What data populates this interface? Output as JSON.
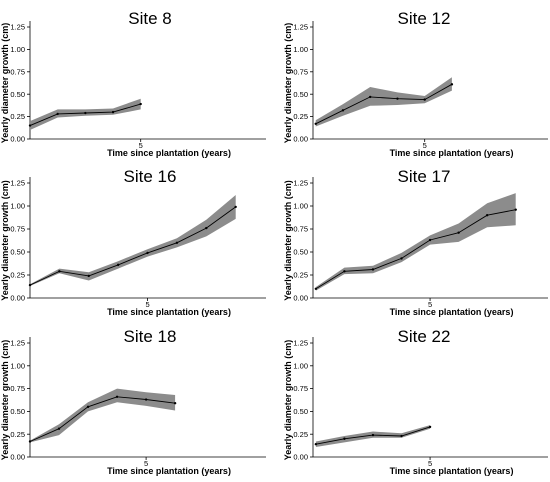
{
  "chart_data": [
    {
      "type": "line",
      "title": "Site 8",
      "xlabel": "Time since plantation (years)",
      "ylabel": "Yearly diameter growth (cm)",
      "x_ticks": [
        5
      ],
      "y_ticks": [
        "0.00",
        "0.25",
        "0.50",
        "0.75",
        "1.00",
        "1.25"
      ],
      "xlim": [
        1,
        9.6
      ],
      "ylim": [
        0,
        1.25
      ],
      "series": [
        {
          "x": [
            1,
            2,
            3,
            4,
            5
          ],
          "values": [
            0.15,
            0.28,
            0.29,
            0.3,
            0.39
          ],
          "lower": [
            0.1,
            0.24,
            0.26,
            0.27,
            0.33
          ],
          "upper": [
            0.2,
            0.33,
            0.33,
            0.34,
            0.45
          ]
        }
      ]
    },
    {
      "type": "line",
      "title": "Site 12",
      "xlabel": "Time since plantation (years)",
      "ylabel": "Yearly diameter growth (cm)",
      "x_ticks": [
        5
      ],
      "y_ticks": [
        "0.00",
        "0.25",
        "0.50",
        "0.75",
        "1.00",
        "1.25"
      ],
      "xlim": [
        0.9,
        9.6
      ],
      "ylim": [
        0,
        1.25
      ],
      "series": [
        {
          "x": [
            1,
            2,
            3,
            4,
            5,
            6
          ],
          "values": [
            0.17,
            0.32,
            0.47,
            0.45,
            0.44,
            0.61
          ],
          "lower": [
            0.14,
            0.26,
            0.37,
            0.38,
            0.4,
            0.54
          ],
          "upper": [
            0.21,
            0.39,
            0.58,
            0.52,
            0.48,
            0.69
          ]
        }
      ]
    },
    {
      "type": "line",
      "title": "Site 16",
      "xlabel": "Time since plantation (years)",
      "ylabel": "Yearly diameter growth (cm)",
      "x_ticks": [
        5
      ],
      "y_ticks": [
        "0.00",
        "0.25",
        "0.50",
        "0.75",
        "1.00",
        "1.25"
      ],
      "xlim": [
        1,
        9.1
      ],
      "ylim": [
        0,
        1.25
      ],
      "series": [
        {
          "x": [
            1,
            2,
            3,
            4,
            5,
            6,
            7,
            8
          ],
          "values": [
            0.14,
            0.29,
            0.24,
            0.36,
            0.49,
            0.6,
            0.76,
            0.99
          ],
          "lower": [
            0.13,
            0.27,
            0.19,
            0.32,
            0.45,
            0.55,
            0.67,
            0.86
          ],
          "upper": [
            0.15,
            0.32,
            0.28,
            0.4,
            0.53,
            0.65,
            0.85,
            1.12
          ]
        }
      ]
    },
    {
      "type": "line",
      "title": "Site 17",
      "xlabel": "Time since plantation (years)",
      "ylabel": "Yearly diameter growth (cm)",
      "x_ticks": [
        5
      ],
      "y_ticks": [
        "0.00",
        "0.25",
        "0.50",
        "0.75",
        "1.00",
        "1.25"
      ],
      "xlim": [
        0.9,
        9.2
      ],
      "ylim": [
        0,
        1.25
      ],
      "series": [
        {
          "x": [
            1,
            2,
            3,
            4,
            5,
            6,
            7,
            8
          ],
          "values": [
            0.1,
            0.29,
            0.31,
            0.43,
            0.63,
            0.71,
            0.9,
            0.96
          ],
          "lower": [
            0.08,
            0.26,
            0.27,
            0.39,
            0.58,
            0.61,
            0.77,
            0.79
          ],
          "upper": [
            0.12,
            0.33,
            0.35,
            0.49,
            0.68,
            0.81,
            1.03,
            1.14
          ]
        }
      ]
    },
    {
      "type": "line",
      "title": "Site 18",
      "xlabel": "Time since plantation (years)",
      "ylabel": "Yearly diameter growth (cm)",
      "x_ticks": [
        5
      ],
      "y_ticks": [
        "0.00",
        "0.25",
        "0.50",
        "0.75",
        "1.00",
        "1.25"
      ],
      "xlim": [
        1,
        9.2
      ],
      "ylim": [
        0,
        1.25
      ],
      "series": [
        {
          "x": [
            1,
            2,
            3,
            4,
            5,
            6
          ],
          "values": [
            0.17,
            0.31,
            0.55,
            0.66,
            0.63,
            0.59
          ],
          "lower": [
            0.16,
            0.24,
            0.5,
            0.6,
            0.56,
            0.51
          ],
          "upper": [
            0.18,
            0.36,
            0.6,
            0.75,
            0.71,
            0.68
          ]
        }
      ]
    },
    {
      "type": "line",
      "title": "Site 22",
      "xlabel": "Time since plantation (years)",
      "ylabel": "Yearly diameter growth (cm)",
      "x_ticks": [
        5
      ],
      "y_ticks": [
        "0.00",
        "0.25",
        "0.50",
        "0.75",
        "1.00",
        "1.25"
      ],
      "xlim": [
        0.9,
        9.2
      ],
      "ylim": [
        0,
        1.25
      ],
      "series": [
        {
          "x": [
            1,
            2,
            3,
            4,
            5
          ],
          "values": [
            0.14,
            0.2,
            0.24,
            0.23,
            0.33
          ],
          "lower": [
            0.11,
            0.16,
            0.21,
            0.21,
            0.31
          ],
          "upper": [
            0.17,
            0.23,
            0.28,
            0.26,
            0.35
          ]
        }
      ]
    }
  ],
  "colors": {
    "band": "#8c8c8c",
    "line": "#000000",
    "axis": "#000000"
  }
}
